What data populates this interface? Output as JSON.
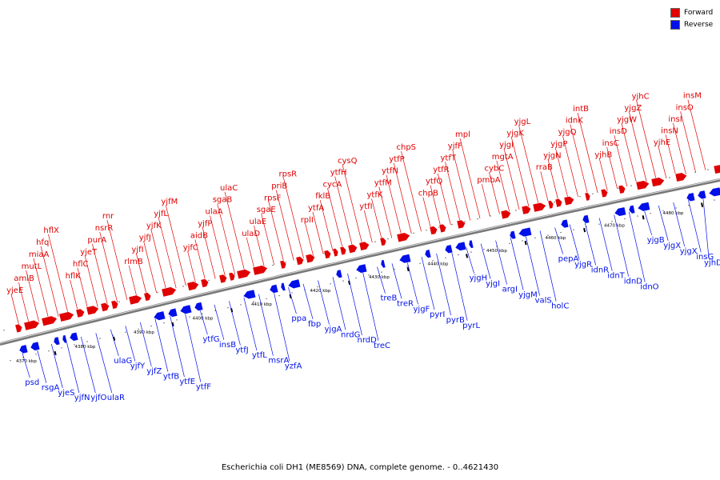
{
  "legend": {
    "forward_label": "Forward",
    "reverse_label": "Reverse"
  },
  "colors": {
    "forward": "#e00000",
    "reverse": "#0010e8",
    "backbone": "#777777"
  },
  "caption": "Escherichia coli DH1 (ME8569) DNA, complete genome. - 0..4621430",
  "axis_unit": "kbp",
  "ticks": [
    4370,
    4380,
    4390,
    4400,
    4410,
    4420,
    4430,
    4440,
    4450,
    4460,
    4470,
    4480
  ],
  "forward_labels": [
    "yjeE",
    "amiB",
    "mutL",
    "miaA",
    "hfq",
    "hflX",
    "hflK",
    "hflC",
    "yjeT",
    "purA",
    "nsrR",
    "rnr",
    "rlmB",
    "yjfI",
    "yjfJ",
    "yjfK",
    "yjfL",
    "yjfM",
    "yjfC",
    "aidB",
    "yjfP",
    "ulaA",
    "sgaB",
    "ulaC",
    "ulaD",
    "ulaE",
    "sgaE",
    "rpsF",
    "priB",
    "rpsR",
    "rplI",
    "ytfA",
    "fklB",
    "cycA",
    "ytfH",
    "cysQ",
    "ytfI",
    "ytfK",
    "ytfM",
    "ytfN",
    "ytfP",
    "chpS",
    "chpB",
    "ytfQ",
    "ytfR",
    "ytfT",
    "yjfF",
    "mpl",
    "pmbA",
    "cybC",
    "mgtA",
    "yjgI",
    "yjgK",
    "yjgL",
    "rraB",
    "yjgN",
    "yjgP",
    "yjgQ",
    "idnK",
    "intB",
    "yjhB",
    "insC",
    "insD",
    "yjgW",
    "yjgZ",
    "yjhC",
    "yjhE",
    "insN",
    "insI",
    "insO",
    "insM"
  ],
  "reverse_labels": [
    "psd",
    "rsgA",
    "yjeS",
    "yjfN",
    "yjfO",
    "ulaR",
    "ulaG",
    "yjfY",
    "yjfZ",
    "ytfB",
    "ytfE",
    "ytfF",
    "ytfG",
    "insB",
    "ytfJ",
    "ytfL",
    "msrA",
    "yzfA",
    "ppa",
    "fbp",
    "yjgA",
    "nrdG",
    "nrdD",
    "treC",
    "treB",
    "treR",
    "yjgF",
    "pyrI",
    "pyrB",
    "pyrL",
    "yjgH",
    "yjgI",
    "argI",
    "yjgM",
    "valS",
    "holC",
    "pepA",
    "yjgR",
    "idnR",
    "idnT",
    "idnD",
    "idnO",
    "yjgB",
    "yjgX",
    "yjgX",
    "insG",
    "yjhD"
  ]
}
